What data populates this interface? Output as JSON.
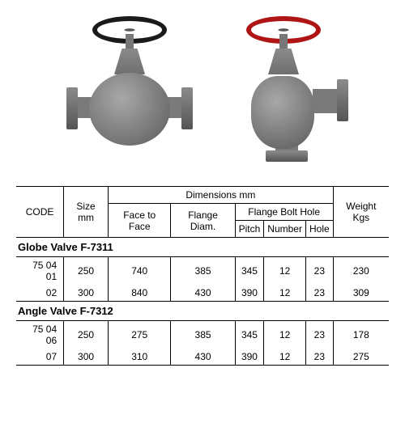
{
  "headers": {
    "code": "CODE",
    "size": "Size mm",
    "dimensions": "Dimensions mm",
    "face": "Face to Face",
    "flange_diam": "Flange Diam.",
    "bolt_hole": "Flange Bolt Hole",
    "pitch": "Pitch",
    "number": "Number",
    "hole": "Hole",
    "weight": "Weight Kgs"
  },
  "sections": [
    {
      "title": "Globe Valve F-7311",
      "rows": [
        {
          "code": "75 04 01",
          "size": "250",
          "face": "740",
          "flange": "385",
          "pitch": "345",
          "number": "12",
          "hole": "23",
          "weight": "230"
        },
        {
          "code": "02",
          "size": "300",
          "face": "840",
          "flange": "430",
          "pitch": "390",
          "number": "12",
          "hole": "23",
          "weight": "309"
        }
      ]
    },
    {
      "title": "Angle Valve F-7312",
      "rows": [
        {
          "code": "75 04 06",
          "size": "250",
          "face": "275",
          "flange": "385",
          "pitch": "345",
          "number": "12",
          "hole": "23",
          "weight": "178"
        },
        {
          "code": "07",
          "size": "300",
          "face": "310",
          "flange": "430",
          "pitch": "390",
          "number": "12",
          "hole": "23",
          "weight": "275"
        }
      ]
    }
  ],
  "style": {
    "border_color": "#000000",
    "font_family": "Arial",
    "header_fontsize": 12,
    "cell_fontsize": 12,
    "wheel_colors": [
      "#1a1a1a",
      "#b01515"
    ]
  }
}
